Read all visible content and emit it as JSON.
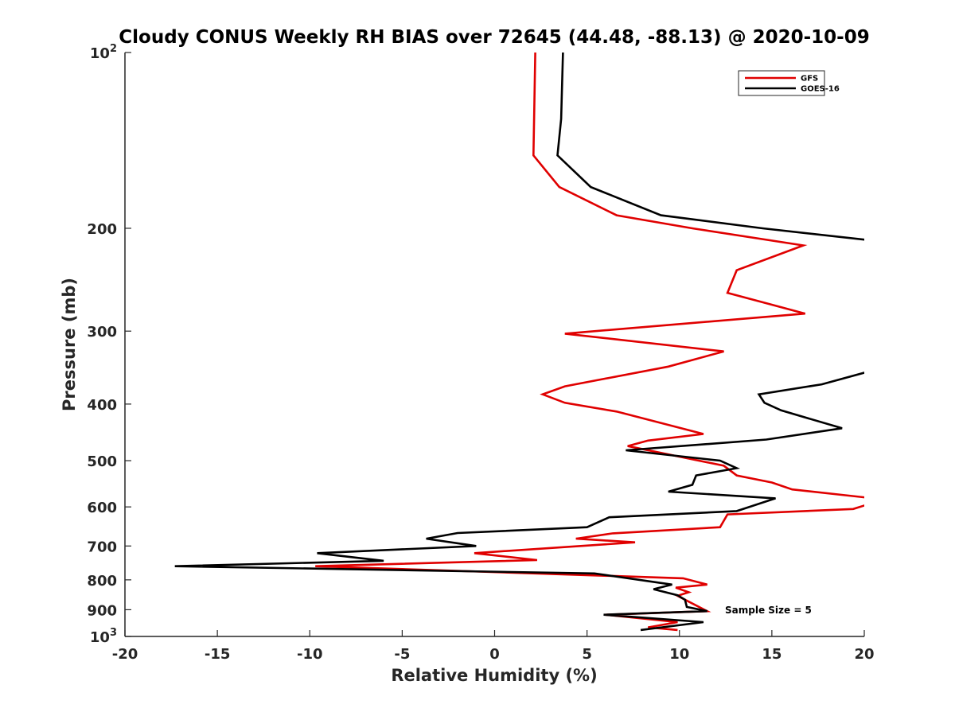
{
  "chart_data": {
    "type": "line",
    "title": "Cloudy CONUS Weekly RH BIAS over 72645 (44.48, -88.13) @ 2020-10-09",
    "xlabel": "Relative Humidity (%)",
    "ylabel": "Pressure (mb)",
    "xlim": [
      -20,
      20
    ],
    "ylim": [
      100,
      1000
    ],
    "y_scale": "log",
    "y_reversed": true,
    "grid": false,
    "legend_position": "top-right",
    "x_ticks": [
      "-20",
      "-15",
      "-10",
      "-5",
      "0",
      "5",
      "10",
      "15",
      "20"
    ],
    "y_ticks": [
      {
        "value": 100,
        "base": "10",
        "exp": "2"
      },
      {
        "value": 200,
        "label": "200"
      },
      {
        "value": 300,
        "label": "300"
      },
      {
        "value": 400,
        "label": "400"
      },
      {
        "value": 500,
        "label": "500"
      },
      {
        "value": 600,
        "label": "600"
      },
      {
        "value": 700,
        "label": "700"
      },
      {
        "value": 800,
        "label": "800"
      },
      {
        "value": 900,
        "label": "900"
      },
      {
        "value": 1000,
        "base": "10",
        "exp": "3"
      }
    ],
    "annotation": "Sample Size = 5",
    "series": [
      {
        "name": "GFS",
        "color": "#e00000",
        "points": [
          [
            2.2,
            100
          ],
          [
            2.1,
            150
          ],
          [
            3.5,
            170
          ],
          [
            6.6,
            190
          ],
          [
            10.7,
            200
          ],
          [
            16.7,
            214
          ],
          [
            13.1,
            236
          ],
          [
            12.6,
            258
          ],
          [
            16.8,
            280
          ],
          [
            3.8,
            303
          ],
          [
            12.4,
            325
          ],
          [
            9.4,
            345
          ],
          [
            3.8,
            373
          ],
          [
            2.6,
            385
          ],
          [
            3.8,
            398
          ],
          [
            6.6,
            412
          ],
          [
            11.3,
            450
          ],
          [
            8.3,
            462
          ],
          [
            7.2,
            472
          ],
          [
            12.4,
            510
          ],
          [
            13.1,
            530
          ],
          [
            15.0,
            545
          ],
          [
            16.1,
            560
          ],
          [
            20.5,
            580
          ],
          [
            20.5,
            590
          ],
          [
            19.4,
            605
          ],
          [
            12.6,
            618
          ],
          [
            12.2,
            650
          ],
          [
            6.4,
            666
          ],
          [
            4.4,
            680
          ],
          [
            7.6,
            690
          ],
          [
            -1.1,
            720
          ],
          [
            2.3,
            740
          ],
          [
            -9.7,
            758
          ],
          [
            10.2,
            795
          ],
          [
            11.5,
            815
          ],
          [
            9.8,
            825
          ],
          [
            10.5,
            840
          ],
          [
            9.9,
            852
          ],
          [
            10.3,
            865
          ],
          [
            11.5,
            905
          ],
          [
            6.0,
            918
          ],
          [
            9.9,
            945
          ],
          [
            8.3,
            965
          ],
          [
            9.9,
            975
          ]
        ]
      },
      {
        "name": "GOES-16",
        "color": "#000000",
        "points": [
          [
            3.7,
            100
          ],
          [
            3.6,
            130
          ],
          [
            3.4,
            150
          ],
          [
            5.2,
            170
          ],
          [
            9.0,
            190
          ],
          [
            14.5,
            200
          ],
          [
            20.5,
            210
          ],
          [
            20.5,
            350
          ],
          [
            17.7,
            370
          ],
          [
            14.3,
            385
          ],
          [
            14.6,
            398
          ],
          [
            15.5,
            410
          ],
          [
            18.8,
            440
          ],
          [
            14.7,
            460
          ],
          [
            7.1,
            480
          ],
          [
            12.2,
            500
          ],
          [
            13.1,
            515
          ],
          [
            10.9,
            530
          ],
          [
            10.7,
            550
          ],
          [
            9.4,
            565
          ],
          [
            15.2,
            580
          ],
          [
            13.1,
            610
          ],
          [
            6.2,
            625
          ],
          [
            5.0,
            650
          ],
          [
            -2.0,
            665
          ],
          [
            -3.7,
            680
          ],
          [
            -1.0,
            700
          ],
          [
            -9.6,
            720
          ],
          [
            -6.0,
            742
          ],
          [
            -17.3,
            758
          ],
          [
            5.4,
            780
          ],
          [
            9.6,
            815
          ],
          [
            8.6,
            830
          ],
          [
            9.9,
            850
          ],
          [
            10.3,
            865
          ],
          [
            10.4,
            890
          ],
          [
            11.5,
            905
          ],
          [
            5.9,
            918
          ],
          [
            11.3,
            945
          ],
          [
            7.9,
            975
          ]
        ]
      }
    ]
  }
}
